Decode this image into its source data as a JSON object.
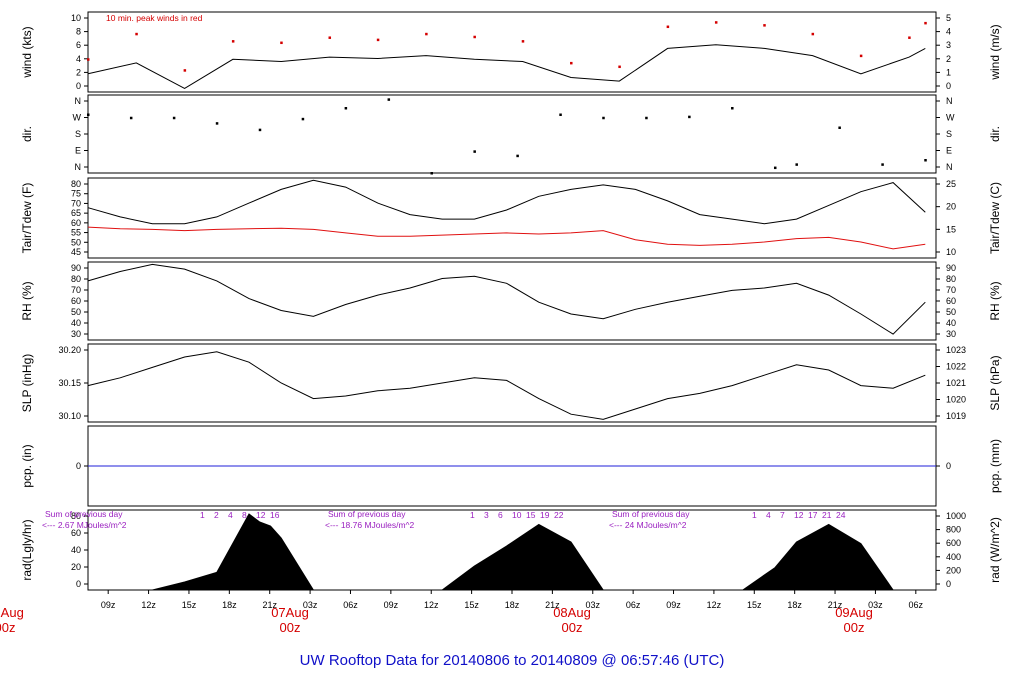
{
  "title": "UW Rooftop Data for 20140806  to  20140809 @ 06:57:46  (UTC)",
  "x_ticks": [
    "09z",
    "12z",
    "15z",
    "18z",
    "21z",
    "03z",
    "06z",
    "09z",
    "12z",
    "15z",
    "18z",
    "21z",
    "03z",
    "06z",
    "09z",
    "12z",
    "15z",
    "18z",
    "21z",
    "03z",
    "06z"
  ],
  "day_labels": [
    {
      "date": "06Aug",
      "time": "00z"
    },
    {
      "date": "07Aug",
      "time": "00z"
    },
    {
      "date": "08Aug",
      "time": "00z"
    },
    {
      "date": "09Aug",
      "time": "00z"
    }
  ],
  "colors": {
    "axis": "#000000",
    "peak": "#d40000",
    "tdew": "#e01010",
    "precip": "#1f1fd8",
    "annotation": "#9a20c0",
    "title": "#1010c8"
  },
  "chart_data": [
    {
      "type": "line",
      "ylabel_left": "wind (kts)",
      "ylabel_right": "wind (m/s)",
      "left_ticks": [
        "0",
        "2",
        "4",
        "6",
        "8",
        "10"
      ],
      "right_ticks": [
        "0",
        "1",
        "2",
        "3",
        "4",
        "5"
      ],
      "ylim": [
        0,
        11
      ],
      "legend_text": "10 min. peak winds in red",
      "legend_placement": "top-left",
      "series": [
        {
          "name": "peak",
          "color": "#d40000",
          "style": "dots",
          "x": [
            0.0,
            4.5,
            9.0,
            13.5,
            18.0,
            22.5,
            27.0,
            31.5,
            36.0,
            40.5,
            45.0,
            49.5,
            54.0,
            58.5,
            63.0,
            67.5,
            72.0,
            76.5,
            78.0
          ],
          "y": [
            4.5,
            8.0,
            3.0,
            7.0,
            6.8,
            7.5,
            7.2,
            8.0,
            7.6,
            7.0,
            4.0,
            3.5,
            9.0,
            9.6,
            9.2,
            8.0,
            5.0,
            7.5,
            9.5
          ]
        },
        {
          "x": [
            0.0,
            4.5,
            9.0,
            13.5,
            18.0,
            22.5,
            27.0,
            31.5,
            36.0,
            40.5,
            45.0,
            49.5,
            54.0,
            58.5,
            63.0,
            67.5,
            72.0,
            76.5,
            78.0
          ],
          "y": [
            2.5,
            4.0,
            0.5,
            4.5,
            4.2,
            4.8,
            4.6,
            5.0,
            4.5,
            4.2,
            2.0,
            1.5,
            6.0,
            6.5,
            6.0,
            5.0,
            2.5,
            4.8,
            6.0
          ]
        }
      ]
    },
    {
      "type": "scatter",
      "ylabel_left": "dir.",
      "ylabel_right": "dir.",
      "left_ticks": [
        "N",
        "E",
        "S",
        "W",
        "N"
      ],
      "right_ticks": [
        "N",
        "E",
        "S",
        "W",
        "N"
      ],
      "ylim": [
        0,
        360
      ],
      "series": [
        {
          "x": [
            0.0,
            4.0,
            8.0,
            12.0,
            16.0,
            20.0,
            24.0,
            28.0,
            32.0,
            36.0,
            40.0,
            44.0,
            48.0,
            52.0,
            56.0,
            60.0,
            64.0,
            66.0,
            70.0,
            74.0,
            78.0
          ],
          "y": [
            270,
            255,
            255,
            230,
            200,
            250,
            300,
            340,
            0,
            100,
            80,
            270,
            255,
            255,
            260,
            300,
            25,
            40,
            210,
            40,
            60
          ]
        }
      ]
    },
    {
      "type": "line",
      "ylabel_left": "Tair/Tdew (F)",
      "ylabel_right": "Tair/Tdew (C)",
      "left_ticks": [
        "45",
        "50",
        "55",
        "60",
        "65",
        "70",
        "75",
        "80"
      ],
      "right_ticks": [
        "10",
        "15",
        "20",
        "25"
      ],
      "ylim": [
        45,
        80
      ],
      "series": [
        {
          "name": "Tair",
          "color": "#000000",
          "x": [
            0,
            3,
            6,
            9,
            12,
            15,
            18,
            21,
            24,
            27,
            30,
            33,
            36,
            39,
            42,
            45,
            48,
            51,
            54,
            57,
            60,
            63,
            66,
            69,
            72,
            75,
            78
          ],
          "y": [
            67,
            63,
            60,
            60,
            63,
            69,
            75,
            79,
            76,
            69,
            64,
            62,
            62,
            66,
            72,
            75,
            77,
            75,
            70,
            64,
            62,
            60,
            62,
            68,
            74,
            78,
            65
          ]
        },
        {
          "name": "Tdew",
          "color": "#e01010",
          "x": [
            0,
            3,
            6,
            9,
            12,
            15,
            18,
            21,
            24,
            27,
            30,
            33,
            36,
            39,
            42,
            45,
            48,
            51,
            54,
            57,
            60,
            63,
            66,
            69,
            72,
            75,
            78
          ],
          "y": [
            58.5,
            57.8,
            57.5,
            57,
            57.5,
            57.8,
            58,
            57.5,
            56,
            54.5,
            54.5,
            55,
            55.5,
            56,
            55.5,
            56,
            57,
            53,
            51,
            50.5,
            51,
            52,
            53.5,
            54,
            52,
            49,
            51
          ]
        }
      ]
    },
    {
      "type": "line",
      "ylabel_left": "RH (%)",
      "ylabel_right": "RH (%)",
      "left_ticks": [
        "30",
        "40",
        "50",
        "60",
        "70",
        "80",
        "90"
      ],
      "right_ticks": [
        "30",
        "40",
        "50",
        "60",
        "70",
        "80",
        "90"
      ],
      "ylim": [
        30,
        96
      ],
      "series": [
        {
          "x": [
            0,
            3,
            6,
            9,
            12,
            15,
            18,
            21,
            24,
            27,
            30,
            33,
            36,
            39,
            42,
            45,
            48,
            51,
            54,
            57,
            60,
            63,
            66,
            69,
            72,
            75,
            78
          ],
          "y": [
            80,
            88,
            94,
            90,
            80,
            65,
            55,
            50,
            60,
            68,
            74,
            82,
            84,
            78,
            62,
            52,
            48,
            56,
            62,
            67,
            72,
            74,
            78,
            68,
            52,
            35,
            62
          ]
        }
      ]
    },
    {
      "type": "line",
      "ylabel_left": "SLP (inHg)",
      "ylabel_right": "SLP (hPa)",
      "left_ticks": [
        "30.10",
        "30.15",
        "30.20"
      ],
      "right_ticks": [
        "1019",
        "1020",
        "1021",
        "1022",
        "1023"
      ],
      "ylim": [
        30.075,
        30.225
      ],
      "series": [
        {
          "x": [
            0,
            3,
            6,
            9,
            12,
            15,
            18,
            21,
            24,
            27,
            30,
            33,
            36,
            39,
            42,
            45,
            48,
            51,
            54,
            57,
            60,
            63,
            66,
            69,
            72,
            75,
            78
          ],
          "y": [
            30.145,
            30.16,
            30.18,
            30.2,
            30.21,
            30.19,
            30.15,
            30.12,
            30.125,
            30.135,
            30.14,
            30.15,
            30.16,
            30.155,
            30.12,
            30.09,
            30.08,
            30.1,
            30.12,
            30.13,
            30.145,
            30.165,
            30.185,
            30.175,
            30.145,
            30.14,
            30.165
          ]
        }
      ]
    },
    {
      "type": "line",
      "ylabel_left": "pcp. (in)",
      "ylabel_right": "pcp. (mm)",
      "left_ticks": [
        "0"
      ],
      "right_ticks": [
        "0"
      ],
      "ylim": [
        -1,
        1
      ],
      "series": [
        {
          "x": [
            0,
            79
          ],
          "y": [
            0,
            0
          ],
          "color": "#1f1fd8"
        }
      ]
    },
    {
      "type": "area",
      "ylabel_left": "rad(Lgly/hr)",
      "ylabel_right": "rad (W/m^2)",
      "left_ticks": [
        "0",
        "20",
        "40",
        "60",
        "80"
      ],
      "right_ticks": [
        "0",
        "200",
        "400",
        "600",
        "800",
        "1000"
      ],
      "ylim": [
        0,
        100
      ],
      "annotations": [
        {
          "line1": "Sum of previous day",
          "line2": "<--- 2.67 MJoules/m^2"
        },
        {
          "line1": "Sum of previous day",
          "line2": "<--- 18.76 MJoules/m^2"
        },
        {
          "line1": "Sum of previous day",
          "line2": "<--- 24 MJoules/m^2"
        }
      ],
      "hour_label_groups": [
        [
          "1",
          "2",
          "4",
          "8",
          "12",
          "16"
        ],
        [
          "1",
          "3",
          "6",
          "10",
          "15",
          "19",
          "22"
        ],
        [
          "1",
          "4",
          "7",
          "12",
          "17",
          "21",
          "24"
        ]
      ],
      "series": [
        {
          "x": [
            6,
            9,
            12,
            15,
            16,
            17,
            18,
            21
          ],
          "y": [
            0,
            10,
            22,
            95,
            85,
            80,
            65,
            0
          ]
        },
        {
          "x": [
            33,
            36,
            39,
            42,
            45,
            48
          ],
          "y": [
            0,
            30,
            55,
            82,
            60,
            0
          ]
        },
        {
          "x": [
            61,
            64,
            66,
            69,
            72,
            75
          ],
          "y": [
            0,
            28,
            60,
            82,
            58,
            0
          ]
        }
      ]
    }
  ]
}
